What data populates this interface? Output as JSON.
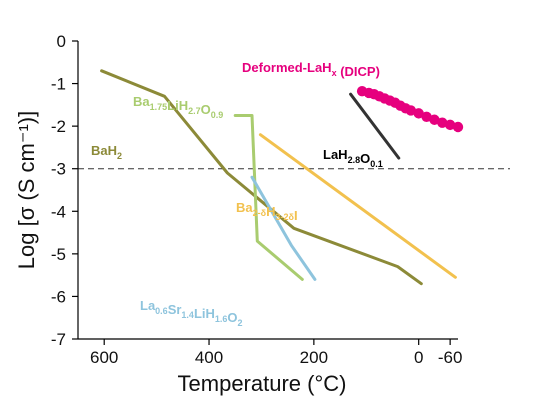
{
  "chart_data": {
    "type": "line",
    "xlabel": "Temperature (°C)",
    "ylabel": "Log [σ (S cm⁻¹)]",
    "x_ticks": [
      600,
      400,
      200,
      0,
      -60
    ],
    "x_tick_labels": [
      "600",
      "400",
      "200",
      "0",
      "-60"
    ],
    "y_ticks": [
      0,
      -1,
      -2,
      -3,
      -4,
      -5,
      -6,
      -7
    ],
    "y_tick_labels": [
      "0",
      "-1",
      "-2",
      "-3",
      "-4",
      "-5",
      "-6",
      "-7"
    ],
    "xlim": [
      650,
      -75
    ],
    "ylim": [
      -7,
      0
    ],
    "reference_line": {
      "y": -3,
      "style": "dashed"
    },
    "series": [
      {
        "label_parts": [
          [
            "Ba"
          ],
          [
            "H",
            ""
          ],
          [
            "2",
            "sub"
          ]
        ],
        "color": "#8c8a38",
        "marker": "none",
        "points": [
          [
            605,
            -0.7
          ],
          [
            485,
            -1.3
          ],
          [
            365,
            -3.1
          ],
          [
            238,
            -4.4
          ],
          [
            40,
            -5.3
          ],
          [
            -5,
            -5.7
          ]
        ]
      },
      {
        "label_parts": [
          [
            "Ba",
            ""
          ],
          [
            "1.75",
            "sub"
          ],
          [
            "LiH",
            ""
          ],
          [
            "2.7",
            "sub"
          ],
          [
            "O",
            ""
          ],
          [
            "0.9",
            "sub"
          ]
        ],
        "color": "#a9cc6f",
        "marker": "none",
        "points": [
          [
            350,
            -1.75
          ],
          [
            318,
            -1.75
          ],
          [
            308,
            -4.7
          ],
          [
            222,
            -5.6
          ]
        ]
      },
      {
        "label_parts": [
          [
            "La",
            ""
          ],
          [
            "0.6",
            "sub"
          ],
          [
            "Sr",
            ""
          ],
          [
            "1.4",
            "sub"
          ],
          [
            "LiH",
            ""
          ],
          [
            "1.6",
            "sub"
          ],
          [
            "O",
            ""
          ],
          [
            "2",
            "sub"
          ]
        ],
        "color": "#8ec4dd",
        "marker": "none",
        "points": [
          [
            318,
            -3.2
          ],
          [
            243,
            -4.8
          ],
          [
            198,
            -5.6
          ]
        ]
      },
      {
        "label_parts": [
          [
            "Ba",
            ""
          ],
          [
            "2-δ",
            "sub"
          ],
          [
            "H",
            ""
          ],
          [
            "3-2δ",
            "sub"
          ],
          [
            "I",
            ""
          ]
        ],
        "color": "#f2c14e",
        "marker": "none",
        "points": [
          [
            302,
            -2.2
          ],
          [
            -70,
            -5.55
          ]
        ]
      },
      {
        "label_parts": [
          [
            "LaH",
            ""
          ],
          [
            "2.8",
            "sub"
          ],
          [
            "O",
            ""
          ],
          [
            "0.1",
            "sub"
          ]
        ],
        "color": "#333333",
        "marker": "none",
        "points": [
          [
            130,
            -1.25
          ],
          [
            38,
            -2.75
          ]
        ]
      },
      {
        "label_parts": [
          [
            "Deformed-LaH",
            ""
          ],
          [
            "x",
            "sub"
          ],
          [
            " (DICP)",
            ""
          ]
        ],
        "color": "#e6007e",
        "marker": "circle",
        "points": [
          [
            108,
            -1.18
          ],
          [
            95,
            -1.22
          ],
          [
            85,
            -1.25
          ],
          [
            75,
            -1.3
          ],
          [
            65,
            -1.35
          ],
          [
            55,
            -1.4
          ],
          [
            45,
            -1.45
          ],
          [
            35,
            -1.52
          ],
          [
            25,
            -1.58
          ],
          [
            15,
            -1.63
          ],
          [
            0,
            -1.7
          ],
          [
            -15,
            -1.78
          ],
          [
            -30,
            -1.85
          ],
          [
            -45,
            -1.92
          ],
          [
            -60,
            -1.97
          ],
          [
            -75,
            -2.02
          ]
        ]
      }
    ]
  }
}
